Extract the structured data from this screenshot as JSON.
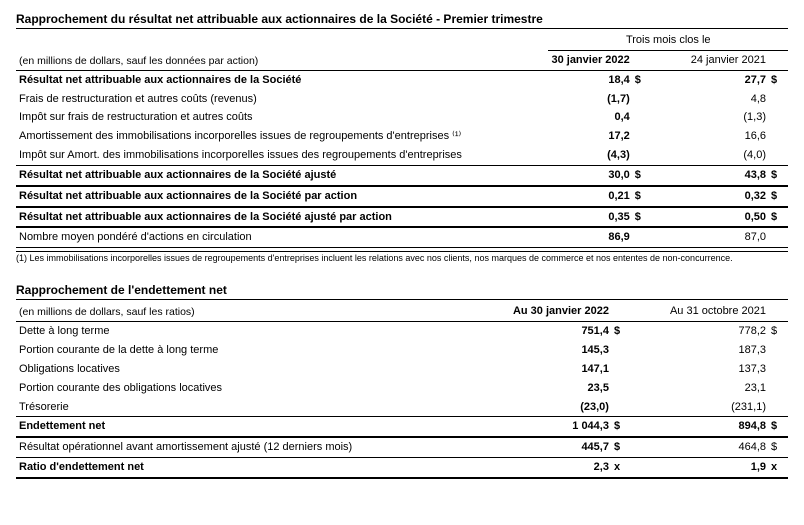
{
  "table1": {
    "title": "Rapprochement du résultat net attribuable aux actionnaires de la Société - Premier trimestre",
    "period_label": "Trois mois clos le",
    "subheader": "(en millions de dollars, sauf les données par action)",
    "col1_date": "30 janvier 2022",
    "col2_date": "24 janvier 2021",
    "rows": [
      {
        "label": "Résultat net attribuable aux actionnaires de la Société",
        "v1": "18,4",
        "u1": "$",
        "v2": "27,7",
        "u2": "$",
        "bold": true,
        "tborder": "",
        "bborder": ""
      },
      {
        "label": "Frais de restructuration et autres coûts (revenus)",
        "v1": "(1,7)",
        "u1": "",
        "v2": "4,8",
        "u2": "",
        "bold": false,
        "tborder": "",
        "bborder": ""
      },
      {
        "label": "Impôt sur frais de restructuration et autres coûts",
        "v1": "0,4",
        "u1": "",
        "v2": "(1,3)",
        "u2": "",
        "bold": false,
        "tborder": "",
        "bborder": ""
      },
      {
        "label": "Amortissement des immobilisations incorporelles issues de regroupements d'entreprises ⁽¹⁾",
        "v1": "17,2",
        "u1": "",
        "v2": "16,6",
        "u2": "",
        "bold": false,
        "tborder": "",
        "bborder": ""
      },
      {
        "label": "Impôt sur Amort. des immobilisations incorporelles issues des regroupements d'entreprises",
        "v1": "(4,3)",
        "u1": "",
        "v2": "(4,0)",
        "u2": "",
        "bold": false,
        "tborder": "",
        "bborder": "thin"
      },
      {
        "label": "Résultat net attribuable aux actionnaires de la Société ajusté",
        "v1": "30,0",
        "u1": "$",
        "v2": "43,8",
        "u2": "$",
        "bold": true,
        "tborder": "",
        "bborder": "thick"
      },
      {
        "label": "Résultat net attribuable aux actionnaires de la Société par action",
        "v1": "0,21",
        "u1": "$",
        "v2": "0,32",
        "u2": "$",
        "bold": true,
        "tborder": "",
        "bborder": "thick"
      },
      {
        "label": "Résultat net attribuable aux actionnaires de la Société ajusté par action",
        "v1": "0,35",
        "u1": "$",
        "v2": "0,50",
        "u2": "$",
        "bold": true,
        "tborder": "",
        "bborder": "thick"
      },
      {
        "label": "Nombre moyen pondéré d'actions en circulation",
        "v1": "86,9",
        "u1": "",
        "v2": "87,0",
        "u2": "",
        "bold": false,
        "tborder": "",
        "bborder": "thin"
      }
    ],
    "footnote": "(1) Les immobilisations incorporelles issues de regroupements d'entreprises incluent les relations avec nos clients, nos marques de commerce et nos ententes de non-concurrence."
  },
  "table2": {
    "title": "Rapprochement de l'endettement net",
    "subheader": "(en millions de dollars, sauf les ratios)",
    "col1_date": "Au 30 janvier 2022",
    "col2_date": "Au 31 octobre 2021",
    "rows": [
      {
        "label": "Dette à long terme",
        "v1": "751,4",
        "u1": "$",
        "v2": "778,2",
        "u2": "$",
        "bold": false,
        "bborder": ""
      },
      {
        "label": "Portion courante de la dette à long terme",
        "v1": "145,3",
        "u1": "",
        "v2": "187,3",
        "u2": "",
        "bold": false,
        "bborder": ""
      },
      {
        "label": "Obligations locatives",
        "v1": "147,1",
        "u1": "",
        "v2": "137,3",
        "u2": "",
        "bold": false,
        "bborder": ""
      },
      {
        "label": "Portion courante des obligations locatives",
        "v1": "23,5",
        "u1": "",
        "v2": "23,1",
        "u2": "",
        "bold": false,
        "bborder": ""
      },
      {
        "label": "Trésorerie",
        "v1": "(23,0)",
        "u1": "",
        "v2": "(231,1)",
        "u2": "",
        "bold": false,
        "bborder": "thin"
      },
      {
        "label": "Endettement net",
        "v1": "1 044,3",
        "u1": "$",
        "v2": "894,8",
        "u2": "$",
        "bold": true,
        "bborder": "thick"
      },
      {
        "label": "Résultat opérationnel avant amortissement ajusté (12 derniers mois)",
        "v1": "445,7",
        "u1": "$",
        "v2": "464,8",
        "u2": "$",
        "bold": false,
        "bborder": "thin"
      },
      {
        "label": "Ratio d'endettement net",
        "v1": "2,3",
        "u1": "x",
        "v2": "1,9",
        "u2": "x",
        "bold": true,
        "bborder": "thick"
      }
    ]
  }
}
